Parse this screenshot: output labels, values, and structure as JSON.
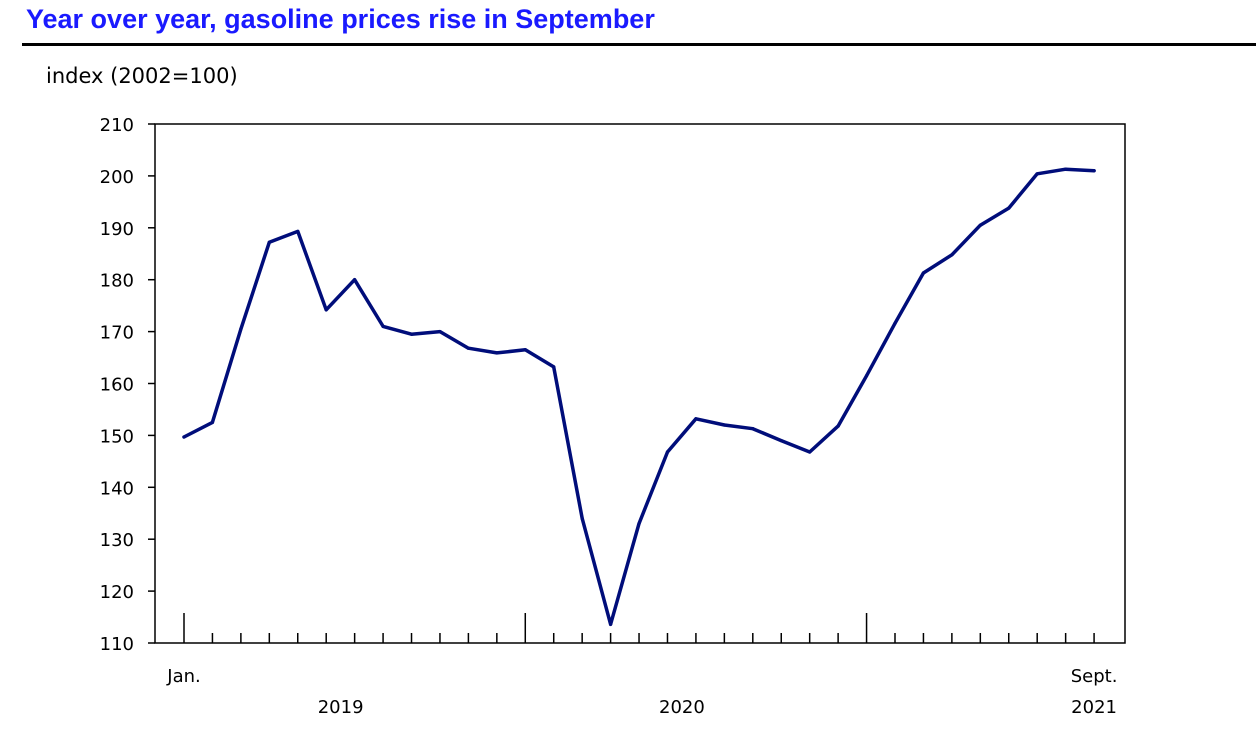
{
  "chart_data": {
    "type": "line",
    "title": "Year over year, gasoline prices rise in September",
    "ylabel": "index (2002=100)",
    "xlabel": "",
    "ylim": [
      110,
      210
    ],
    "yticks": [
      110,
      120,
      130,
      140,
      150,
      160,
      170,
      180,
      190,
      200,
      210
    ],
    "x_start": "2019-01",
    "x_end": "2021-09",
    "x_labels": [
      {
        "month_index": 0,
        "text": "Jan."
      },
      {
        "month_index": 32,
        "text": "Sept."
      }
    ],
    "year_labels": [
      {
        "text": "2019",
        "center_month": 6
      },
      {
        "text": "2020",
        "center_month": 18
      },
      {
        "text": "2021",
        "center_month": 32
      }
    ],
    "year_boundaries": [
      0,
      12,
      24
    ],
    "grid": false,
    "series": [
      {
        "color": "#000d7a",
        "values": [
          149.7,
          152.5,
          170.5,
          187.2,
          189.3,
          174.2,
          180.0,
          171.0,
          169.5,
          170.0,
          166.8,
          165.9,
          166.5,
          163.2,
          134.0,
          113.6,
          133.0,
          146.8,
          153.2,
          152.0,
          151.3,
          149.0,
          146.8,
          151.8,
          161.5,
          171.6,
          181.3,
          184.8,
          190.5,
          193.8,
          200.4,
          201.3,
          201.0
        ]
      }
    ]
  }
}
